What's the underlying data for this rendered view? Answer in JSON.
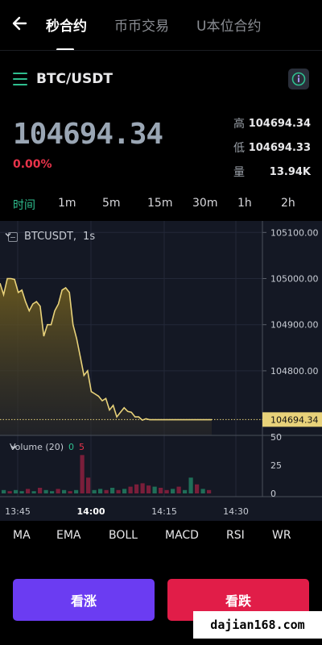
{
  "nav": {
    "tabs": [
      "秒合约",
      "币币交易",
      "U本位合约"
    ],
    "active_tab": 0
  },
  "pair": {
    "symbol": "BTC/USDT"
  },
  "ticker": {
    "last_price": "104694.34",
    "change_pct": "0.00%",
    "high_label": "高",
    "high_value": "104694.34",
    "low_label": "低",
    "low_value": "104694.33",
    "volume_label": "量",
    "volume_value": "13.94K"
  },
  "timeframes": [
    "时间",
    "1m",
    "5m",
    "15m",
    "30m",
    "1h",
    "2h"
  ],
  "active_timeframe": 0,
  "chart_header": {
    "symbol": "BTCUSDT",
    "interval": "1s"
  },
  "volume_header": {
    "label": "Volume (20)",
    "green_value": "0",
    "red_value": "5"
  },
  "indicators": [
    "MA",
    "EMA",
    "BOLL",
    "MACD",
    "RSI",
    "WR"
  ],
  "buttons": {
    "up": "看涨",
    "down": "看跌"
  },
  "watermark": "dajian168.com",
  "colors": {
    "accent_green": "#2fbf8f",
    "down_red": "#e8334a",
    "up_button": "#6b3cf2",
    "down_button": "#e11d48",
    "line_yellow": "#e8d27a",
    "price_tag": "#e8d27a"
  },
  "chart_data": {
    "type": "area",
    "price_axis_ticks": [
      "105100.00",
      "105000.00",
      "104900.00",
      "104800.00"
    ],
    "current_price_tag": "104694.34",
    "ylim": [
      104660,
      105125
    ],
    "time_axis_ticks": [
      "13:45",
      "14:00",
      "14:15",
      "14:30"
    ],
    "series": [
      {
        "x": [
          0,
          3,
          6,
          9,
          12,
          15,
          18,
          21,
          24,
          27,
          30,
          33,
          36,
          39,
          42,
          45,
          48,
          51,
          54,
          57,
          60,
          63,
          66,
          69,
          72,
          75,
          78,
          81,
          84,
          87,
          90,
          93,
          96,
          99,
          102,
          105,
          108,
          111,
          114,
          117,
          120,
          123,
          126,
          129,
          132,
          135,
          138,
          141,
          144,
          147,
          150,
          153,
          156,
          159,
          162,
          165,
          168,
          171,
          174
        ],
        "values": [
          104990,
          104965,
          105000,
          105000,
          104998,
          104970,
          104975,
          104950,
          104930,
          104945,
          104950,
          104940,
          104875,
          104900,
          104900,
          104930,
          104945,
          104975,
          104980,
          104970,
          104900,
          104870,
          104830,
          104790,
          104800,
          104755,
          104750,
          104745,
          104735,
          104740,
          104715,
          104725,
          104700,
          104710,
          104720,
          104712,
          104710,
          104700,
          104700,
          104693,
          104696,
          104694,
          104694,
          104694,
          104694,
          104694,
          104694,
          104694,
          104694,
          104694,
          104694,
          104694,
          104694,
          104694,
          104694,
          104694,
          104694,
          104694,
          104694
        ]
      }
    ],
    "volume_axis_ticks": [
      "50",
      "25",
      "0"
    ],
    "volume_ylim": [
      0,
      50
    ],
    "volume_bars": [
      {
        "v": 3,
        "c": "g"
      },
      {
        "v": 2,
        "c": "r"
      },
      {
        "v": 3,
        "c": "g"
      },
      {
        "v": 2,
        "c": "g"
      },
      {
        "v": 4,
        "c": "r"
      },
      {
        "v": 2,
        "c": "g"
      },
      {
        "v": 5,
        "c": "r"
      },
      {
        "v": 3,
        "c": "g"
      },
      {
        "v": 2,
        "c": "g"
      },
      {
        "v": 4,
        "c": "r"
      },
      {
        "v": 3,
        "c": "g"
      },
      {
        "v": 2,
        "c": "r"
      },
      {
        "v": 3,
        "c": "g"
      },
      {
        "v": 34,
        "c": "r"
      },
      {
        "v": 14,
        "c": "r"
      },
      {
        "v": 3,
        "c": "g"
      },
      {
        "v": 4,
        "c": "g"
      },
      {
        "v": 3,
        "c": "r"
      },
      {
        "v": 5,
        "c": "g"
      },
      {
        "v": 3,
        "c": "r"
      },
      {
        "v": 4,
        "c": "g"
      },
      {
        "v": 6,
        "c": "r"
      },
      {
        "v": 8,
        "c": "r"
      },
      {
        "v": 9,
        "c": "r"
      },
      {
        "v": 7,
        "c": "r"
      },
      {
        "v": 6,
        "c": "g"
      },
      {
        "v": 5,
        "c": "r"
      },
      {
        "v": 3,
        "c": "r"
      },
      {
        "v": 4,
        "c": "g"
      },
      {
        "v": 6,
        "c": "r"
      },
      {
        "v": 3,
        "c": "g"
      },
      {
        "v": 14,
        "c": "g"
      },
      {
        "v": 8,
        "c": "r"
      },
      {
        "v": 4,
        "c": "g"
      },
      {
        "v": 3,
        "c": "r"
      }
    ]
  }
}
